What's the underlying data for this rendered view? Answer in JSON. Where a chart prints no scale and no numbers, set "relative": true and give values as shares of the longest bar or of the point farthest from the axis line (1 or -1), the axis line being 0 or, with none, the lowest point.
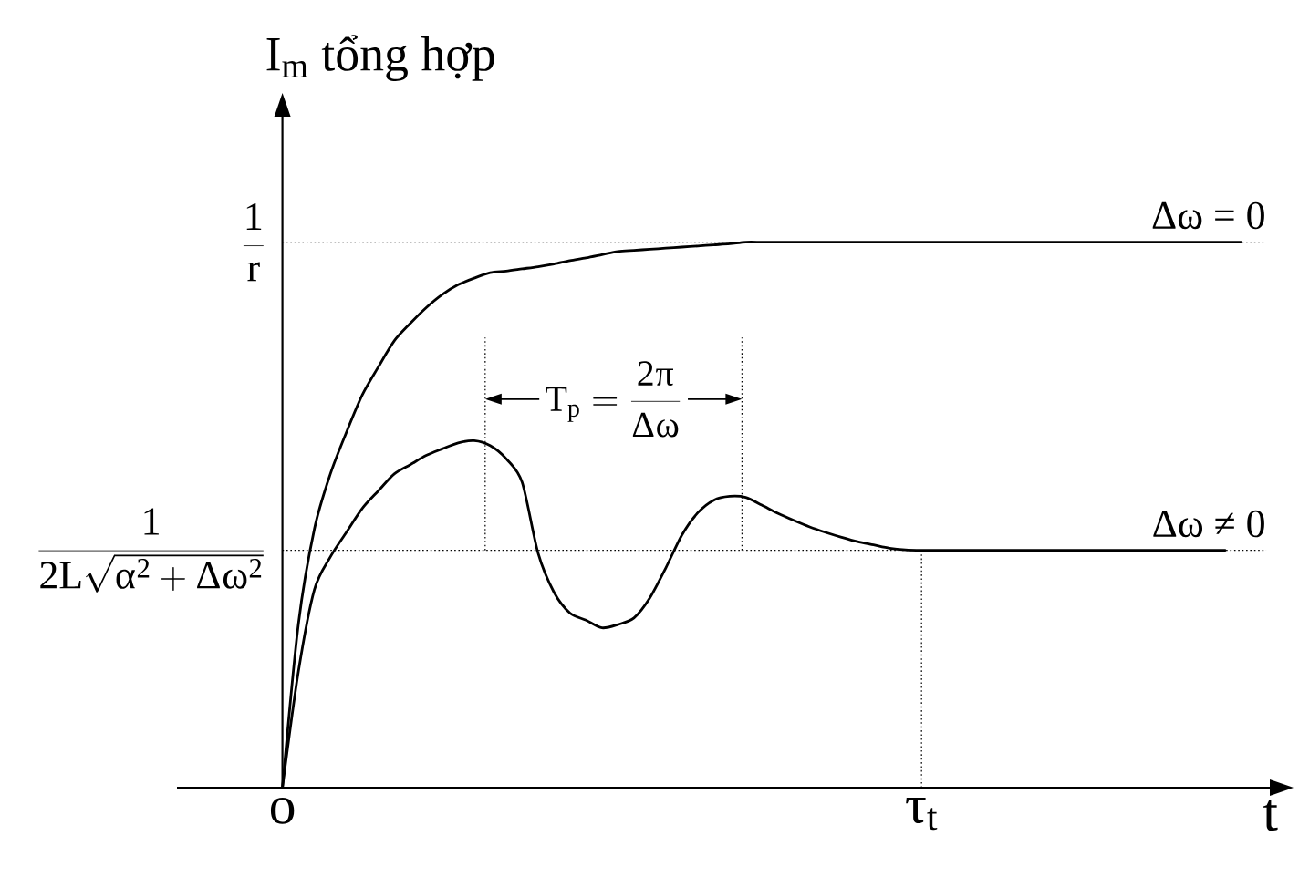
{
  "chart_data": {
    "type": "line",
    "relative": true,
    "ylabel": "I$_{m}$ tổng hợp",
    "xlabel": "t",
    "categories": [
      "o",
      null,
      null,
      null,
      null,
      null,
      null,
      null,
      null,
      null,
      null,
      null,
      null,
      null,
      null,
      null,
      null,
      null,
      null,
      null,
      null,
      null,
      null,
      null,
      null,
      null,
      null,
      null,
      null,
      null,
      null,
      null,
      null,
      null,
      null,
      null,
      null,
      null,
      null,
      null,
      "τ$_{t}$",
      null,
      null,
      null,
      null,
      null,
      null,
      null,
      null,
      null,
      null,
      null,
      null,
      null,
      null,
      null,
      null,
      null,
      null,
      null,
      null
    ],
    "series": [
      {
        "name": "Δω = 0",
        "color": "#000000",
        "values": [
          0,
          0.3,
          0.474,
          0.575,
          0.651,
          0.72,
          0.771,
          0.819,
          0.851,
          0.88,
          0.904,
          0.922,
          0.934,
          0.944,
          0.947,
          0.951,
          0.955,
          0.96,
          0.966,
          0.971,
          0.977,
          0.983,
          0.985,
          0.987,
          0.989,
          0.991,
          0.993,
          0.995,
          0.997,
          1,
          1,
          1,
          1,
          1,
          1,
          1,
          1,
          1,
          1,
          1,
          1,
          1,
          1,
          1,
          1,
          1,
          1,
          1,
          1,
          1,
          1,
          1,
          1,
          1,
          1,
          1,
          1,
          1,
          1,
          1,
          1
        ]
      },
      {
        "name": "Δω ≠ 0",
        "color": "#000000",
        "values": [
          0,
          0.213,
          0.363,
          0.423,
          0.468,
          0.512,
          0.544,
          0.575,
          0.592,
          0.609,
          0.621,
          0.632,
          0.636,
          0.627,
          0.603,
          0.56,
          0.43,
          0.358,
          0.32,
          0.307,
          0.293,
          0.299,
          0.311,
          0.348,
          0.403,
          0.463,
          0.504,
          0.527,
          0.534,
          0.532,
          0.518,
          0.503,
          0.49,
          0.478,
          0.468,
          0.459,
          0.451,
          0.445,
          0.439,
          0.436,
          0.435,
          0.435,
          0.435,
          0.435,
          0.435,
          0.435,
          0.435,
          0.435,
          0.435,
          0.435,
          0.435,
          0.435,
          0.435,
          0.435,
          0.435,
          0.435,
          0.435,
          0.435,
          0.435,
          0.435,
          null
        ]
      }
    ],
    "ref_lines": [
      {
        "axis": "y",
        "value": 1,
        "label": "\\frac{1}{r}"
      },
      {
        "axis": "y",
        "value": 0.435,
        "label": "\\frac{1}{2L\\sqrt{\\alpha^2+\\Delta\\omega^2}}"
      },
      {
        "axis": "x",
        "value": "τ$_{t}$"
      }
    ],
    "annotations": [
      "T_p = \\frac{2\\pi}{\\Delta\\omega}"
    ]
  }
}
